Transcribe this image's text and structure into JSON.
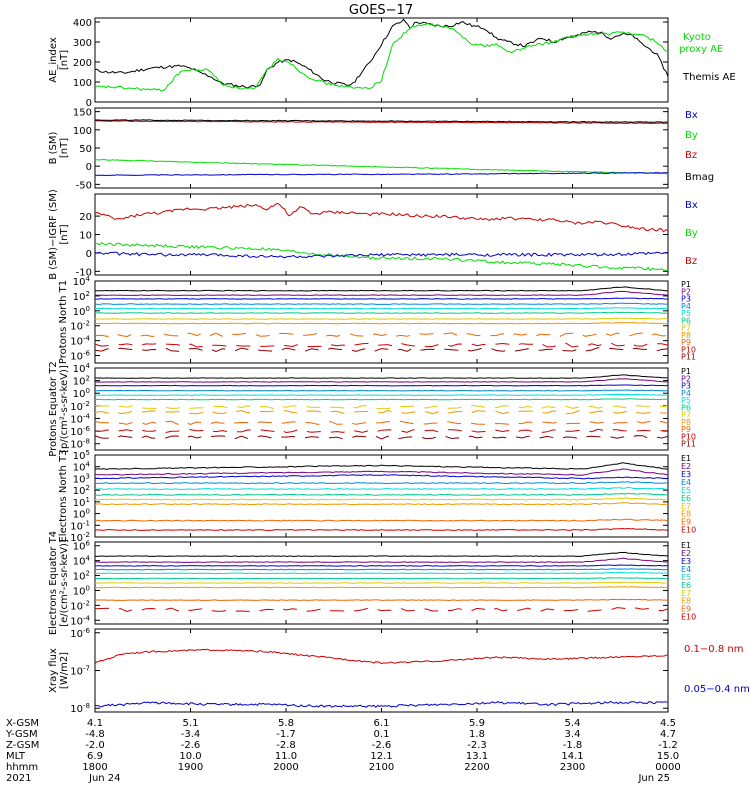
{
  "title": "GOES−17",
  "colors": {
    "black": "#000000",
    "green": "#00dd00",
    "blue": "#0000cc",
    "red": "#cc0000",
    "P1": "#000000",
    "P2": "#7a007a",
    "P3": "#0000cc",
    "P4": "#0088dd",
    "P5": "#00dddd",
    "P6": "#00cc88",
    "P7": "#ddcc00",
    "P8": "#ee9900",
    "P9": "#ee6600",
    "P10": "#cc0000",
    "P11": "#880000"
  },
  "chart_data": [
    {
      "type": "line",
      "name": "ae",
      "ylabel": "AE_index [nT]",
      "ylim": [
        0,
        420
      ],
      "yticks": [
        "0",
        "100",
        "200",
        "300",
        "400"
      ],
      "x_start": "1800",
      "x_end": "0000",
      "legend": [
        "Kyoto proxy AE",
        "Themis AE"
      ],
      "legend_lines": [
        [
          "Kyoto",
          "proxy AE"
        ],
        [
          "Themis AE"
        ]
      ],
      "series": [
        {
          "name": "Themis AE",
          "color": "#000000",
          "x": [
            0,
            2,
            5,
            8,
            10,
            12,
            15,
            17,
            18,
            20,
            22,
            25,
            27,
            29,
            30,
            32,
            34,
            35,
            37,
            38,
            40,
            42,
            44,
            45,
            46,
            48,
            50,
            52,
            54,
            55,
            56,
            58,
            60,
            62,
            64,
            66,
            68,
            70,
            72,
            75,
            78,
            80,
            82,
            84,
            86,
            88,
            90,
            92,
            94,
            95,
            96,
            98,
            100
          ],
          "values": [
            160,
            150,
            145,
            160,
            170,
            175,
            180,
            165,
            150,
            130,
            95,
            80,
            75,
            90,
            160,
            200,
            210,
            200,
            170,
            150,
            110,
            95,
            85,
            90,
            130,
            200,
            290,
            380,
            410,
            370,
            400,
            390,
            380,
            380,
            400,
            380,
            370,
            320,
            300,
            280,
            320,
            300,
            320,
            330,
            350,
            350,
            320,
            340,
            330,
            300,
            280,
            240,
            130
          ]
        },
        {
          "name": "Kyoto proxy AE",
          "color": "#00dd00",
          "x": [
            0,
            3,
            5,
            8,
            10,
            12,
            15,
            18,
            20,
            22,
            25,
            28,
            30,
            32,
            34,
            35,
            37,
            40,
            42,
            45,
            48,
            50,
            52,
            55,
            58,
            60,
            62,
            64,
            66,
            68,
            70,
            72,
            74,
            76,
            78,
            80,
            82,
            84,
            86,
            88,
            90,
            92,
            94,
            96,
            98,
            100
          ],
          "values": [
            75,
            75,
            70,
            65,
            60,
            60,
            155,
            160,
            160,
            90,
            70,
            65,
            160,
            215,
            200,
            170,
            130,
            95,
            85,
            70,
            70,
            110,
            290,
            370,
            390,
            380,
            370,
            330,
            290,
            280,
            290,
            250,
            260,
            280,
            290,
            300,
            320,
            330,
            340,
            340,
            340,
            350,
            340,
            330,
            300,
            250
          ]
        }
      ]
    },
    {
      "type": "line",
      "name": "bsm",
      "ylabel": "B (SM) [nT]",
      "ylim": [
        -60,
        160
      ],
      "yticks": [
        "-50",
        "0",
        "50",
        "100",
        "150"
      ],
      "legend": [
        "Bx",
        "By",
        "Bz",
        "Bmag"
      ],
      "series": [
        {
          "name": "Bz",
          "color": "#cc0000",
          "x": [
            0,
            100
          ],
          "values": [
            124,
            118
          ]
        },
        {
          "name": "Bmag",
          "color": "#000000",
          "x": [
            0,
            100
          ],
          "values": [
            127,
            121
          ]
        },
        {
          "name": "By",
          "color": "#00dd00",
          "x": [
            0,
            20,
            40,
            60,
            80,
            100
          ],
          "values": [
            18,
            10,
            2,
            -6,
            -14,
            -20
          ]
        },
        {
          "name": "Bx",
          "color": "#0000cc",
          "x": [
            0,
            30,
            60,
            100
          ],
          "values": [
            -25,
            -23,
            -22,
            -18
          ]
        }
      ]
    },
    {
      "type": "line",
      "name": "bigrf",
      "ylabel": "B (SM)−IGRF (SM) [nT]",
      "ylim": [
        -12,
        32
      ],
      "yticks": [
        "-10",
        "0",
        "10",
        "20"
      ],
      "legend": [
        "Bx",
        "By",
        "Bz"
      ],
      "series": [
        {
          "name": "Bz",
          "color": "#cc0000",
          "x": [
            0,
            4,
            8,
            12,
            16,
            20,
            24,
            28,
            30,
            32,
            34,
            36,
            38,
            40,
            44,
            48,
            52,
            56,
            60,
            64,
            68,
            72,
            76,
            80,
            84,
            88,
            92,
            96,
            100
          ],
          "values": [
            22,
            18,
            21,
            22,
            24,
            24,
            25,
            26,
            24,
            27,
            20,
            25,
            21,
            22,
            22,
            21,
            21,
            20,
            20,
            19,
            18,
            19,
            18,
            18,
            16,
            17,
            15,
            13,
            12
          ]
        },
        {
          "name": "By",
          "color": "#00dd00",
          "x": [
            0,
            10,
            20,
            30,
            40,
            50,
            60,
            70,
            80,
            90,
            100
          ],
          "values": [
            5,
            4,
            3,
            2,
            -1,
            -3,
            -3,
            -5,
            -6,
            -8,
            -9
          ]
        },
        {
          "name": "Bx",
          "color": "#0000cc",
          "x": [
            0,
            10,
            20,
            30,
            40,
            50,
            60,
            70,
            80,
            90,
            100
          ],
          "values": [
            0,
            -1,
            -1,
            -2,
            -2,
            -1,
            -1,
            -1,
            -1,
            -1,
            0
          ]
        }
      ]
    },
    {
      "type": "line",
      "name": "protons_t1",
      "ylabel": "Protons North T1",
      "yscale": "log",
      "ylim_exp": [
        -7,
        4
      ],
      "yticks": [
        "10^4",
        "10^2",
        "10^0",
        "10^-2",
        "10^-4",
        "10^-6"
      ],
      "legend": [
        "P1",
        "P2",
        "P3",
        "P4",
        "P5",
        "P6",
        "P7",
        "P8",
        "P9",
        "P10",
        "P11"
      ],
      "series_exp": [
        2.7,
        2.1,
        1.6,
        0.9,
        0.3,
        -0.3,
        -1.1,
        -1.7,
        -3.2,
        -4.6,
        -5.2
      ]
    },
    {
      "type": "line",
      "name": "protons_t2",
      "ylabel": "Protons Equator T2 [p/(cm²-s-sr-keV)]",
      "yscale": "log",
      "ylim_exp": [
        -9,
        4
      ],
      "yticks": [
        "10^4",
        "10^2",
        "10^0",
        "10^-2",
        "10^-4",
        "10^-6",
        "10^-8"
      ],
      "legend": [
        "P1",
        "P2",
        "P3",
        "P4",
        "P5",
        "P6",
        "P7",
        "P8",
        "P9",
        "P10",
        "P11"
      ],
      "series_exp": [
        2.4,
        1.8,
        1.2,
        0.4,
        -0.3,
        -1.0,
        -2.2,
        -3.0,
        -4.7,
        -6.0,
        -7.0
      ]
    },
    {
      "type": "line",
      "name": "electrons_t3",
      "ylabel": "Electrons North T3",
      "yscale": "log",
      "ylim_exp": [
        -2,
        5
      ],
      "yticks": [
        "10^5",
        "10^4",
        "10^3",
        "10^2",
        "10^1",
        "10^0",
        "10^-1",
        "10^-2"
      ],
      "legend": [
        "E1",
        "E2",
        "E3",
        "E4",
        "E5",
        "E6",
        "E7",
        "E8",
        "E9",
        "E10"
      ],
      "series_exp": [
        3.8,
        3.3,
        3.0,
        2.6,
        2.1,
        1.6,
        1.2,
        0.8,
        -0.6,
        -1.4
      ]
    },
    {
      "type": "line",
      "name": "electrons_t4",
      "ylabel": "Electrons Equator T4 [e/(cm²-s-sr-keV)]",
      "yscale": "log",
      "ylim_exp": [
        -4.5,
        6.5
      ],
      "yticks": [
        "10^6",
        "10^4",
        "10^2",
        "10^0",
        "10^-2",
        "10^-4"
      ],
      "legend": [
        "E1",
        "E2",
        "E3",
        "E4",
        "E5",
        "E6",
        "E7",
        "E8",
        "E9",
        "E10"
      ],
      "series_exp": [
        4.6,
        3.8,
        3.3,
        2.8,
        2.3,
        1.6,
        1.0,
        0.4,
        -1.3,
        -2.6
      ]
    },
    {
      "type": "line",
      "name": "xray",
      "ylabel": "Xray flux [W/m2]",
      "yscale": "log",
      "ylim_exp": [
        -8.1,
        -5.9
      ],
      "yticks": [
        "10^-6",
        "10^-7",
        "10^-8"
      ],
      "legend": [
        "0.1−0.8 nm",
        "0.05−0.4 nm"
      ],
      "series": [
        {
          "name": "0.1−0.8 nm",
          "color": "#cc0000",
          "x": [
            0,
            5,
            10,
            20,
            30,
            40,
            50,
            60,
            70,
            80,
            90,
            100
          ],
          "values_exp": [
            -6.8,
            -6.55,
            -6.5,
            -6.45,
            -6.5,
            -6.65,
            -6.8,
            -6.75,
            -6.65,
            -6.7,
            -6.65,
            -6.6
          ]
        },
        {
          "name": "0.05−0.4 nm",
          "color": "#0000cc",
          "x": [
            0,
            10,
            20,
            30,
            40,
            50,
            60,
            70,
            80,
            90,
            100
          ],
          "values_exp": [
            -7.95,
            -7.85,
            -7.9,
            -7.9,
            -7.95,
            -7.95,
            -7.9,
            -7.85,
            -7.9,
            -7.85,
            -7.85
          ]
        }
      ]
    }
  ],
  "ephemeris": {
    "row_labels": [
      "X-GSM",
      "Y-GSM",
      "Z-GSM",
      "MLT",
      "hhmm",
      "2021"
    ],
    "columns": [
      [
        "4.1",
        "-4.8",
        "-2.0",
        "6.9",
        "1800",
        "Jun 24"
      ],
      [
        "5.1",
        "-3.4",
        "-2.6",
        "10.0",
        "1900",
        ""
      ],
      [
        "5.8",
        "-1.7",
        "-2.8",
        "11.0",
        "2000",
        ""
      ],
      [
        "6.1",
        "0.1",
        "-2.6",
        "12.1",
        "2100",
        ""
      ],
      [
        "5.9",
        "1.8",
        "-2.3",
        "13.1",
        "2200",
        ""
      ],
      [
        "5.4",
        "3.4",
        "-1.8",
        "14.1",
        "2300",
        ""
      ],
      [
        "4.5",
        "4.7",
        "-1.2",
        "15.0",
        "0000",
        "Jun 25"
      ]
    ]
  }
}
